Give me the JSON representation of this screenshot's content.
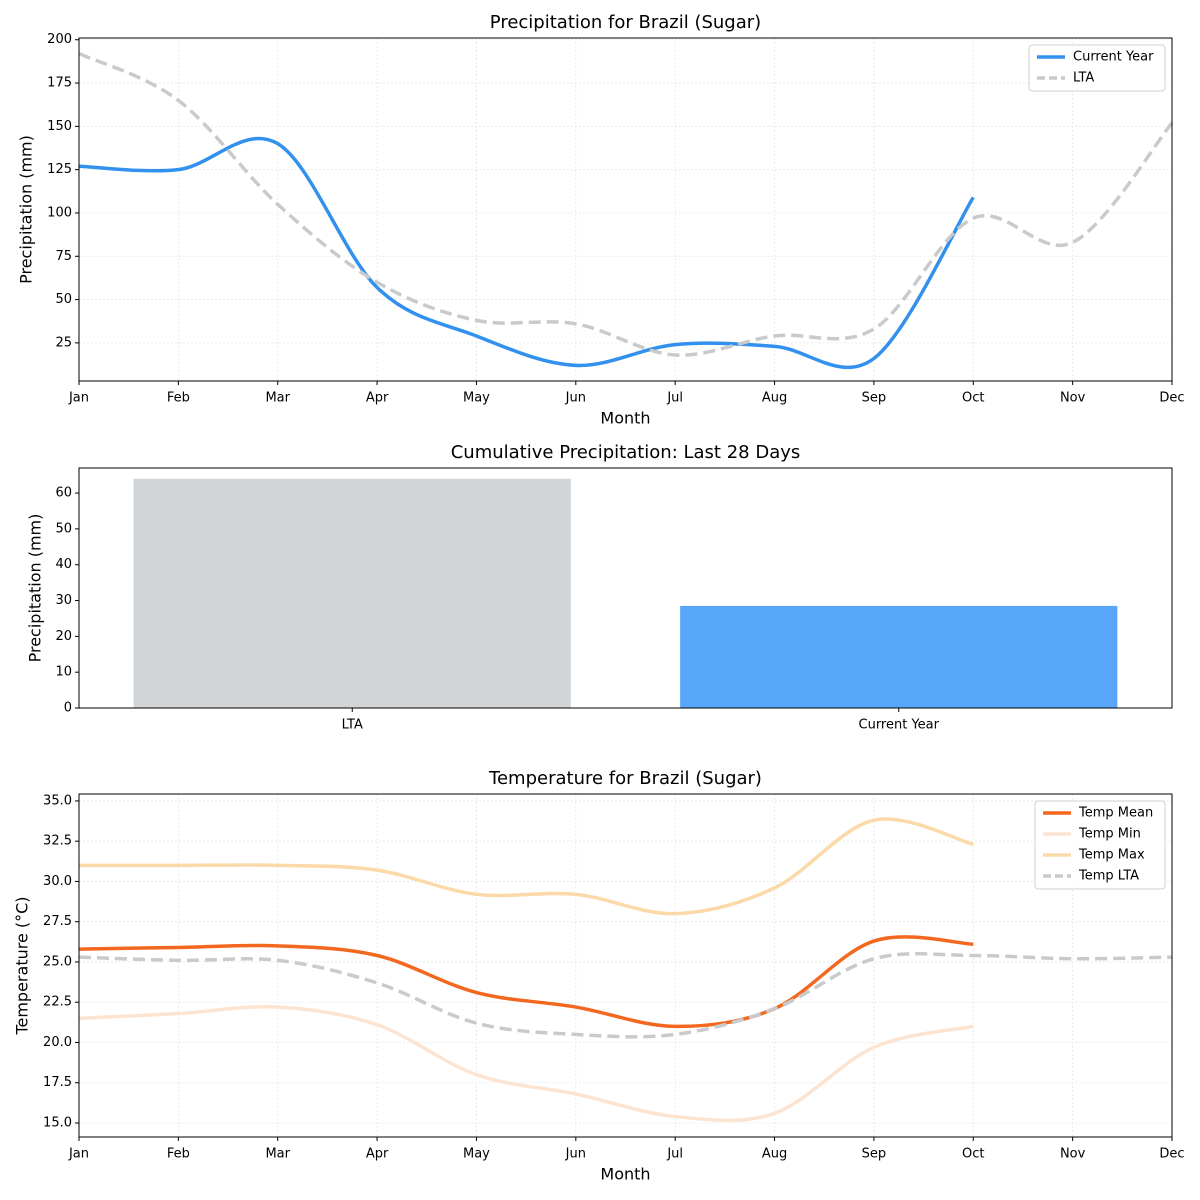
{
  "chart_data": [
    {
      "type": "line",
      "title": "Precipitation for Brazil (Sugar)",
      "x_label": "Month",
      "y_label": "Precipitation (mm)",
      "categories": [
        "Jan",
        "Feb",
        "Mar",
        "Apr",
        "May",
        "Jun",
        "Jul",
        "Aug",
        "Sep",
        "Oct",
        "Nov",
        "Dec"
      ],
      "series": [
        {
          "name": "Current Year",
          "color": "#3391ee",
          "linestyle": "solid",
          "values": [
            127,
            125,
            140,
            57,
            29,
            12,
            24,
            23,
            16,
            109,
            null,
            null
          ]
        },
        {
          "name": "LTA",
          "color": "#c8cacc",
          "linestyle": "dashed",
          "values": [
            192,
            165,
            105,
            60,
            38,
            36,
            18,
            29,
            33,
            97,
            83,
            152
          ]
        }
      ],
      "ylim": [
        3,
        201
      ],
      "yticks": [
        25,
        50,
        75,
        100,
        125,
        150,
        175,
        200
      ],
      "grid": true,
      "legend": "upper right"
    },
    {
      "type": "bar",
      "title": "Cumulative Precipitation: Last 28 Days",
      "y_label": "Precipitation (mm)",
      "categories": [
        "LTA",
        "Current Year"
      ],
      "values": [
        64,
        28.5
      ],
      "colors": [
        "#d1d5d8",
        "#58a6fa"
      ],
      "ylim": [
        0,
        67
      ],
      "yticks": [
        0,
        10,
        20,
        30,
        40,
        50,
        60
      ],
      "grid": false
    },
    {
      "type": "line",
      "title": "Temperature for Brazil (Sugar)",
      "x_label": "Month",
      "y_label": "Temperature (°C)",
      "categories": [
        "Jan",
        "Feb",
        "Mar",
        "Apr",
        "May",
        "Jun",
        "Jul",
        "Aug",
        "Sep",
        "Oct",
        "Nov",
        "Dec"
      ],
      "series": [
        {
          "name": "Temp Mean",
          "color": "#f3681e",
          "linestyle": "solid",
          "values": [
            25.8,
            25.9,
            26.0,
            25.4,
            23.1,
            22.2,
            21.0,
            22.1,
            26.3,
            26.1,
            null,
            null
          ]
        },
        {
          "name": "Temp Min",
          "color": "#fde4d0",
          "linestyle": "solid",
          "values": [
            21.5,
            21.8,
            22.2,
            21.1,
            18.0,
            16.8,
            15.4,
            15.6,
            19.7,
            21.0,
            null,
            null
          ]
        },
        {
          "name": "Temp Max",
          "color": "#fbd9a8",
          "linestyle": "solid",
          "values": [
            31.0,
            31.0,
            31.0,
            30.7,
            29.2,
            29.2,
            28.0,
            29.6,
            33.8,
            32.3,
            null,
            null
          ]
        },
        {
          "name": "Temp LTA",
          "color": "#c8cacc",
          "linestyle": "dashed",
          "values": [
            25.3,
            25.1,
            25.1,
            23.7,
            21.2,
            20.5,
            20.5,
            22.1,
            25.2,
            25.4,
            25.2,
            25.3
          ]
        }
      ],
      "ylim": [
        14.13,
        35.43
      ],
      "yticks": [
        {
          "value": 15,
          "label": "15.0"
        },
        17.5,
        {
          "value": 20,
          "label": "20.0"
        },
        22.5,
        {
          "value": 25,
          "label": "25.0"
        },
        27.5,
        {
          "value": 30,
          "label": "30.0"
        },
        32.5,
        {
          "value": 35,
          "label": "35.0"
        }
      ],
      "grid": true,
      "legend": "upper right"
    }
  ]
}
